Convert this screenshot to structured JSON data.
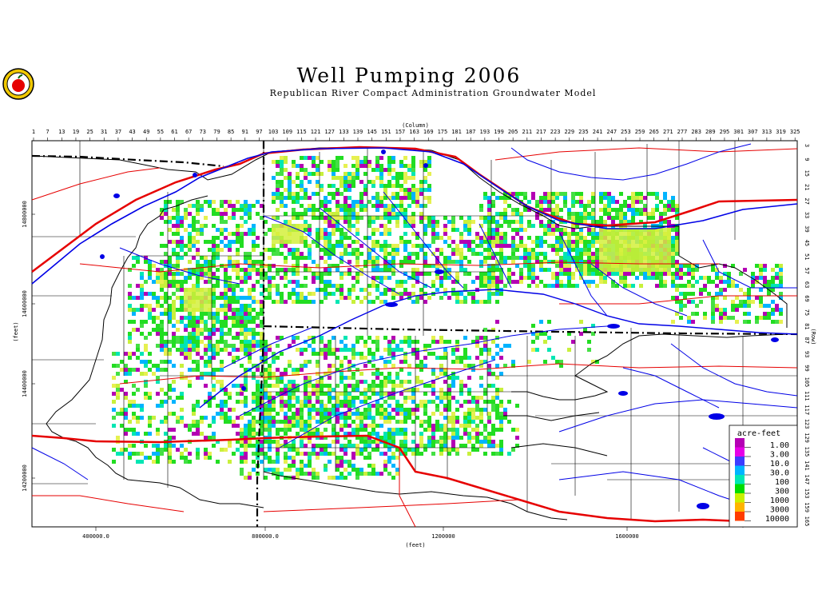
{
  "title": "Well Pumping 2006",
  "subtitle": "Republican River Compact Administration Groundwater Model",
  "axes": {
    "column_label": "(Column)",
    "row_label": "(Row)",
    "x_label": "(feet)",
    "y_label": "(feet)",
    "column_ticks": [
      "1",
      "7",
      "13",
      "19",
      "25",
      "31",
      "37",
      "43",
      "49",
      "55",
      "61",
      "67",
      "73",
      "79",
      "85",
      "91",
      "97",
      "103",
      "109",
      "115",
      "121",
      "127",
      "133",
      "139",
      "145",
      "151",
      "157",
      "163",
      "169",
      "175",
      "181",
      "187",
      "193",
      "199",
      "205",
      "211",
      "217",
      "223",
      "229",
      "235",
      "241",
      "247",
      "253",
      "259",
      "265",
      "271",
      "277",
      "283",
      "289",
      "295",
      "301",
      "307",
      "313",
      "319",
      "325"
    ],
    "row_ticks": [
      "3",
      "9",
      "15",
      "21",
      "27",
      "33",
      "39",
      "45",
      "51",
      "57",
      "63",
      "69",
      "75",
      "81",
      "87",
      "93",
      "99",
      "105",
      "111",
      "117",
      "123",
      "129",
      "135",
      "141",
      "147",
      "153",
      "159",
      "165"
    ],
    "x_ticks": [
      "400000.0",
      "800000.0",
      "1200000",
      "1600000"
    ],
    "y_ticks": [
      "14800000",
      "14600000",
      "14400000",
      "14200000"
    ]
  },
  "legend": {
    "title": "acre-feet",
    "items": [
      {
        "label": "1.00",
        "color": "#b400b4"
      },
      {
        "label": "3.00",
        "color": "#e600e6"
      },
      {
        "label": "10.0",
        "color": "#3c3cff"
      },
      {
        "label": "30.0",
        "color": "#00b4ff"
      },
      {
        "label": "100",
        "color": "#00e6b4"
      },
      {
        "label": "300",
        "color": "#00dc00"
      },
      {
        "label": "1000",
        "color": "#c8f000"
      },
      {
        "label": "3000",
        "color": "#ffb400"
      },
      {
        "label": "10000",
        "color": "#ff3c00"
      }
    ]
  },
  "colors": {
    "river": "#0000e6",
    "road": "#e60000",
    "boundary": "#000000",
    "pumping_green": "#22dd22",
    "pumping_light": "#c8f03c"
  },
  "logo": {
    "icon": "apple-logo-icon"
  }
}
